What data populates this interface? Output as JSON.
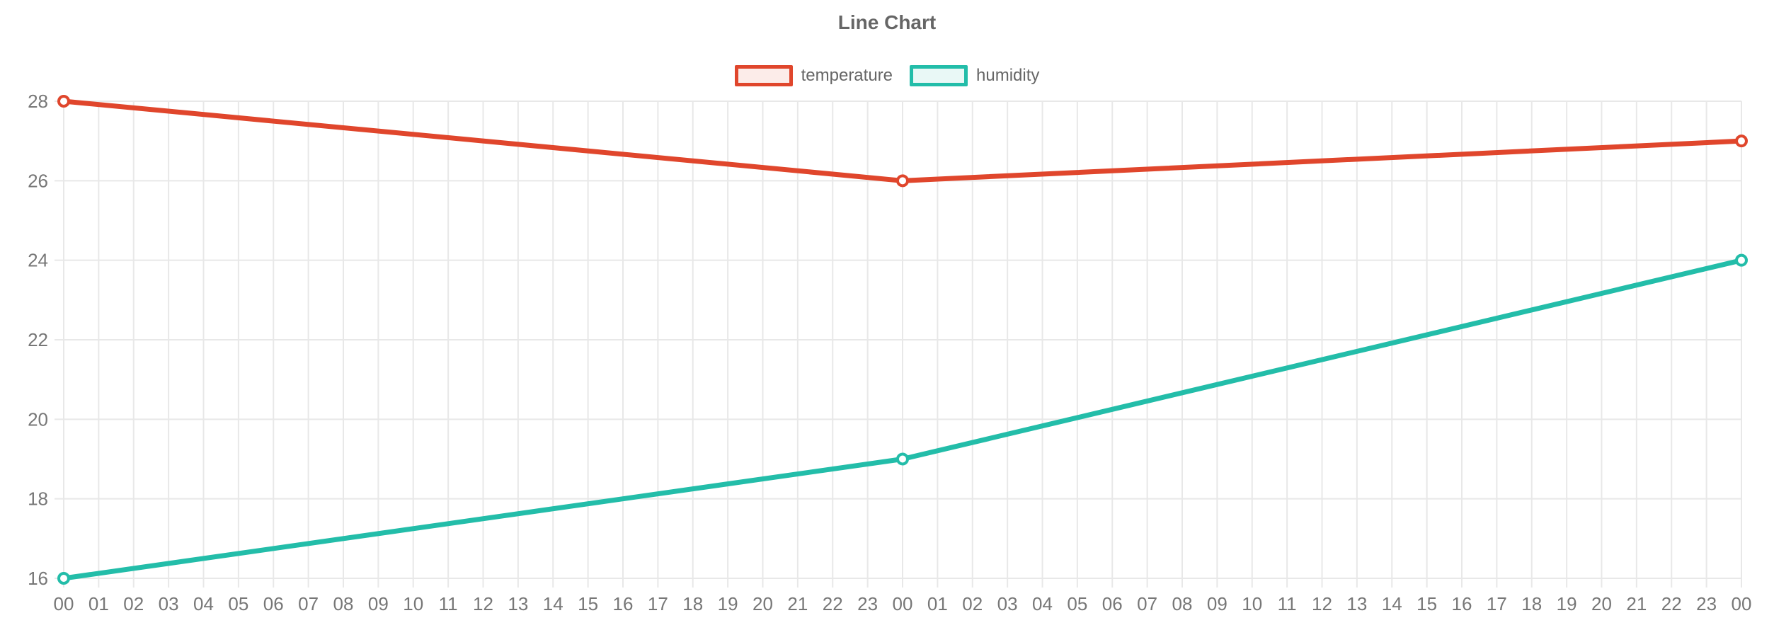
{
  "chart_data": {
    "type": "line",
    "title": "Line Chart",
    "x_labels": [
      "00",
      "01",
      "02",
      "03",
      "04",
      "05",
      "06",
      "07",
      "08",
      "09",
      "10",
      "11",
      "12",
      "13",
      "14",
      "15",
      "16",
      "17",
      "18",
      "19",
      "20",
      "21",
      "22",
      "23",
      "00",
      "01",
      "02",
      "03",
      "04",
      "05",
      "06",
      "07",
      "08",
      "09",
      "10",
      "11",
      "12",
      "13",
      "14",
      "15",
      "16",
      "17",
      "18",
      "19",
      "20",
      "21",
      "22",
      "23",
      "00"
    ],
    "ylim": [
      16,
      28
    ],
    "y_ticks": [
      16,
      18,
      20,
      22,
      24,
      26,
      28
    ],
    "grid": true,
    "legend_position": "top",
    "series": [
      {
        "name": "temperature",
        "color": "#e0462c",
        "fill": "rgba(224,70,44,0.10)",
        "points": [
          {
            "i": 0,
            "label": "00",
            "value": 28
          },
          {
            "i": 24,
            "label": "00",
            "value": 26
          },
          {
            "i": 48,
            "label": "00",
            "value": 27
          }
        ]
      },
      {
        "name": "humidity",
        "color": "#23bda9",
        "fill": "rgba(35,189,169,0.10)",
        "points": [
          {
            "i": 0,
            "label": "00",
            "value": 16
          },
          {
            "i": 24,
            "label": "00",
            "value": 19
          },
          {
            "i": 48,
            "label": "00",
            "value": 24
          }
        ]
      }
    ],
    "colors": {
      "grid": "#e8e8e8",
      "tick_text": "#777777",
      "title_text": "#666666",
      "legend_text": "#666666",
      "background": "#ffffff",
      "marker_fill": "#ffffff"
    }
  }
}
